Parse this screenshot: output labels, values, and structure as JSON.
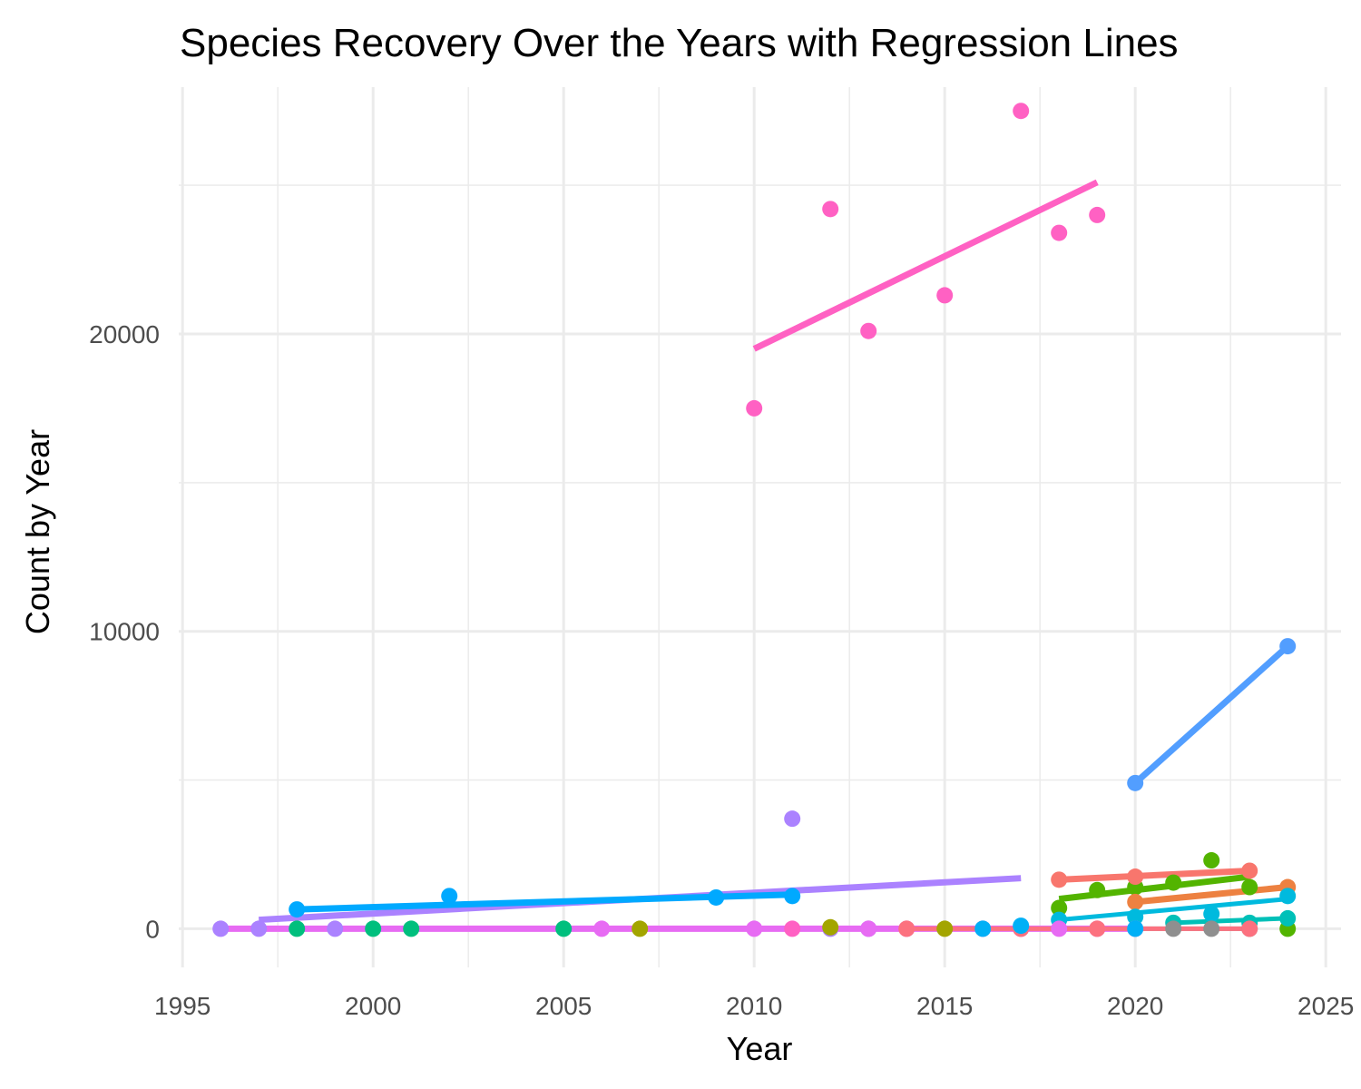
{
  "chart_data": {
    "type": "scatter",
    "title": "Species Recovery Over the Years with Regression Lines",
    "xlabel": "Year",
    "ylabel": "Count by Year",
    "xlim": [
      1994.9,
      2025.4
    ],
    "ylim": [
      -1300,
      28300
    ],
    "xticks": [
      1995,
      2000,
      2005,
      2010,
      2015,
      2020,
      2025
    ],
    "yticks": [
      0,
      10000,
      20000
    ],
    "xminor": [
      1997.5,
      2002.5,
      2007.5,
      2012.5,
      2017.5,
      2022.5
    ],
    "yminor": [
      5000,
      15000,
      25000
    ],
    "grid": true,
    "legend": "none",
    "series": [
      {
        "color": "#FF61C3",
        "points": [
          [
            2010,
            17500
          ],
          [
            2011,
            0
          ],
          [
            2012,
            24200
          ],
          [
            2013,
            20100
          ],
          [
            2015,
            21300
          ],
          [
            2017,
            27500
          ],
          [
            2018,
            23400
          ],
          [
            2019,
            24000
          ]
        ],
        "fit": [
          [
            2010,
            19500
          ],
          [
            2019,
            25100
          ]
        ],
        "fit_width": 7
      },
      {
        "color": "#529EFF",
        "points": [
          [
            2020,
            4900
          ],
          [
            2024,
            9500
          ]
        ],
        "fit": [
          [
            2020,
            4900
          ],
          [
            2024,
            9500
          ]
        ],
        "fit_width": 7
      },
      {
        "color": "#AB82FF",
        "points": [
          [
            1996,
            0
          ],
          [
            1997,
            0
          ],
          [
            1999,
            0
          ],
          [
            2011,
            3700
          ],
          [
            2012,
            0
          ],
          [
            2013,
            0
          ]
        ],
        "fit": [
          [
            1997,
            300
          ],
          [
            2017,
            1700
          ]
        ],
        "fit_width": 7
      },
      {
        "color": "#00A9FF",
        "points": [
          [
            1998,
            650
          ],
          [
            2002,
            1100
          ],
          [
            2009,
            1050
          ],
          [
            2011,
            1100
          ]
        ],
        "fit": [
          [
            1998,
            650
          ],
          [
            2011,
            1150
          ]
        ],
        "fit_width": 7
      },
      {
        "color": "#53B400",
        "points": [
          [
            2018,
            700
          ],
          [
            2019,
            1300
          ],
          [
            2020,
            1400
          ],
          [
            2021,
            1550
          ],
          [
            2022,
            2300
          ],
          [
            2023,
            1400
          ],
          [
            2024,
            0
          ]
        ],
        "fit": [
          [
            2018,
            1000
          ],
          [
            2023,
            1750
          ]
        ],
        "fit_width": 7
      },
      {
        "color": "#F8766D",
        "points": [
          [
            2018,
            1650
          ],
          [
            2020,
            1750
          ],
          [
            2023,
            1950
          ]
        ],
        "fit": [
          [
            2018,
            1650
          ],
          [
            2023,
            1950
          ]
        ],
        "fit_width": 7
      },
      {
        "color": "#ED8141",
        "points": [
          [
            2020,
            900
          ],
          [
            2024,
            1400
          ]
        ],
        "fit": [
          [
            2020,
            900
          ],
          [
            2024,
            1400
          ]
        ],
        "fit_width": 7
      },
      {
        "color": "#00BADE",
        "points": [
          [
            2018,
            300
          ],
          [
            2020,
            400
          ],
          [
            2022,
            500
          ],
          [
            2024,
            1100
          ]
        ],
        "fit": [
          [
            2018,
            300
          ],
          [
            2024,
            1000
          ]
        ],
        "fit_width": 5
      },
      {
        "color": "#00C0B8",
        "points": [
          [
            2021,
            200
          ],
          [
            2023,
            200
          ],
          [
            2024,
            350
          ]
        ],
        "fit": [
          [
            2021,
            200
          ],
          [
            2024,
            350
          ]
        ],
        "fit_width": 5
      },
      {
        "color": "#00BF7D",
        "points": [
          [
            1998,
            0
          ],
          [
            2000,
            0
          ],
          [
            2001,
            0
          ],
          [
            2005,
            0
          ]
        ],
        "fit": null,
        "fit_width": 5
      },
      {
        "color": "#A3A500",
        "points": [
          [
            2007,
            0
          ],
          [
            2012,
            50
          ],
          [
            2015,
            0
          ]
        ],
        "fit": null,
        "fit_width": 5
      },
      {
        "color": "#8F8F8F",
        "points": [
          [
            2021,
            0
          ],
          [
            2022,
            0
          ],
          [
            2023,
            0
          ]
        ],
        "fit": [
          [
            2020,
            0
          ],
          [
            2023,
            0
          ]
        ],
        "fit_width": 5
      },
      {
        "color": "#E76BF3",
        "points": [
          [
            2006,
            0
          ],
          [
            2010,
            0
          ],
          [
            2013,
            0
          ],
          [
            2014,
            0
          ],
          [
            2016,
            0
          ],
          [
            2017,
            0
          ],
          [
            2018,
            0
          ],
          [
            2019,
            0
          ],
          [
            2020,
            0
          ]
        ],
        "fit": [
          [
            1996,
            0
          ],
          [
            2020,
            0
          ]
        ],
        "fit_width": 7
      },
      {
        "color": "#FC717F",
        "points": [
          [
            2014,
            0
          ],
          [
            2017,
            0
          ],
          [
            2019,
            0
          ],
          [
            2023,
            0
          ]
        ],
        "fit": [
          [
            2014,
            0
          ],
          [
            2023,
            0
          ]
        ],
        "fit_width": 5
      },
      {
        "color": "#00B0F6",
        "points": [
          [
            2016,
            0
          ],
          [
            2017,
            100
          ],
          [
            2020,
            0
          ]
        ],
        "fit": null,
        "fit_width": 5
      }
    ]
  }
}
